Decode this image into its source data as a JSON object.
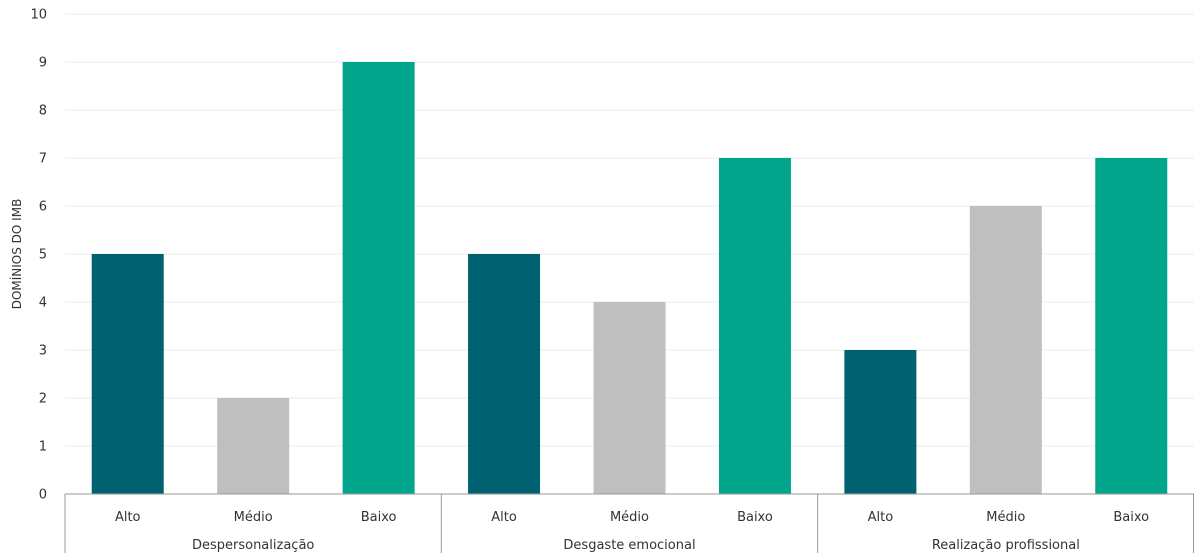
{
  "chart_data": {
    "type": "bar",
    "ylabel": "DOMÍNIOS DO IMB",
    "ylim": [
      0,
      10
    ],
    "yticks": [
      "0",
      "1",
      "2",
      "3",
      "4",
      "5",
      "6",
      "7",
      "8",
      "9",
      "10"
    ],
    "grid": true,
    "groups": [
      {
        "label": "Despersonalização",
        "categories": [
          "Alto",
          "Médio",
          "Baixo"
        ],
        "values": [
          5,
          2,
          9
        ]
      },
      {
        "label": "Desgaste emocional",
        "categories": [
          "Alto",
          "Médio",
          "Baixo"
        ],
        "values": [
          5,
          4,
          7
        ]
      },
      {
        "label": "Realização profissional",
        "categories": [
          "Alto",
          "Médio",
          "Baixo"
        ],
        "values": [
          3,
          6,
          7
        ]
      }
    ],
    "colors": {
      "Alto": "#006270",
      "Médio": "#bfbfbf",
      "Baixo": "#00a58c"
    }
  }
}
